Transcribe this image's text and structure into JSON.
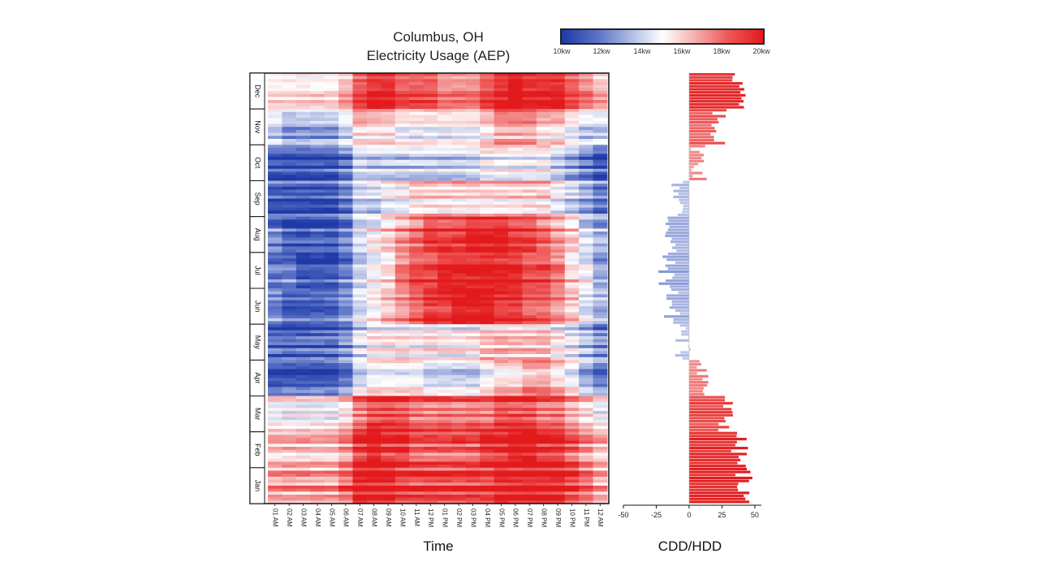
{
  "title_lines": [
    "Columbus, OH",
    "Electricity Usage (AEP)"
  ],
  "colorbar": {
    "ticks": [
      "10kw",
      "12kw",
      "14kw",
      "16kw",
      "18kw",
      "20kw"
    ],
    "colors": [
      "#1f3aa7",
      "#5b73c7",
      "#b7c2e6",
      "#ffffff",
      "#f5b0b0",
      "#ef5a5a",
      "#e31a1c"
    ]
  },
  "chart_data": [
    {
      "type": "heatmap",
      "title": "Columbus, OH Electricity Usage (AEP)",
      "xlabel": "Time",
      "ylabel": "",
      "x_ticks": [
        "01 AM",
        "02 AM",
        "03 AM",
        "04 AM",
        "05 AM",
        "06 AM",
        "07 AM",
        "08 AM",
        "09 AM",
        "10 AM",
        "11 AM",
        "12 PM",
        "01 PM",
        "02 PM",
        "03 PM",
        "04 PM",
        "05 PM",
        "06 PM",
        "07 PM",
        "08 PM",
        "09 PM",
        "10 PM",
        "11 PM",
        "12 AM"
      ],
      "y_months_top_to_bottom": [
        "Dec",
        "Nov",
        "Oct",
        "Sep",
        "Aug",
        "Jul",
        "Jun",
        "May",
        "Apr",
        "Mar",
        "Feb",
        "Jan"
      ],
      "value_range_kw": [
        10,
        20
      ],
      "monthly_typical_kw_by_hour": {
        "Dec": [
          15,
          15,
          15,
          15,
          15,
          16,
          18,
          19,
          19,
          18,
          18,
          18,
          17,
          17,
          17,
          18,
          19,
          20,
          19,
          19,
          19,
          18,
          17,
          16
        ],
        "Nov": [
          14,
          13,
          13,
          13,
          13,
          14,
          16,
          16,
          16,
          15,
          15,
          15,
          15,
          15,
          15,
          16,
          17,
          17,
          17,
          16,
          16,
          15,
          14,
          14
        ],
        "Oct": [
          11,
          11,
          11,
          11,
          11,
          12,
          14,
          14,
          14,
          14,
          14,
          14,
          14,
          14,
          14,
          15,
          15,
          15,
          15,
          15,
          14,
          13,
          12,
          11
        ],
        "Sep": [
          11,
          11,
          11,
          11,
          11,
          12,
          14,
          14,
          15,
          15,
          16,
          16,
          16,
          16,
          16,
          16,
          16,
          16,
          16,
          16,
          15,
          14,
          13,
          12
        ],
        "Aug": [
          12,
          11,
          11,
          11,
          11,
          12,
          14,
          15,
          16,
          17,
          18,
          19,
          19,
          19,
          20,
          20,
          20,
          19,
          19,
          18,
          17,
          16,
          14,
          13
        ],
        "Jul": [
          12,
          12,
          11,
          11,
          11,
          12,
          14,
          15,
          16,
          18,
          19,
          19,
          20,
          20,
          20,
          20,
          20,
          20,
          19,
          19,
          18,
          16,
          15,
          13
        ],
        "Jun": [
          12,
          11,
          11,
          11,
          11,
          12,
          14,
          15,
          16,
          17,
          18,
          19,
          19,
          20,
          20,
          20,
          19,
          19,
          18,
          18,
          17,
          16,
          14,
          13
        ],
        "May": [
          11,
          11,
          11,
          11,
          11,
          12,
          14,
          15,
          15,
          15,
          15,
          15,
          15,
          15,
          15,
          16,
          16,
          16,
          16,
          16,
          15,
          14,
          13,
          12
        ],
        "Apr": [
          11,
          11,
          11,
          11,
          11,
          12,
          14,
          15,
          15,
          15,
          15,
          14,
          14,
          14,
          14,
          15,
          16,
          16,
          17,
          17,
          16,
          15,
          13,
          12
        ],
        "Mar": [
          15,
          15,
          15,
          15,
          15,
          16,
          18,
          19,
          19,
          19,
          18,
          18,
          18,
          18,
          18,
          18,
          19,
          19,
          19,
          18,
          18,
          17,
          16,
          15
        ],
        "Feb": [
          16,
          16,
          16,
          16,
          16,
          17,
          19,
          20,
          19,
          19,
          18,
          18,
          18,
          18,
          18,
          19,
          19,
          20,
          20,
          19,
          19,
          18,
          17,
          16
        ],
        "Jan": [
          17,
          17,
          17,
          17,
          17,
          18,
          20,
          20,
          20,
          19,
          19,
          19,
          19,
          19,
          19,
          19,
          20,
          20,
          20,
          20,
          20,
          19,
          18,
          17
        ]
      }
    },
    {
      "type": "bar",
      "orientation": "horizontal",
      "xlabel": "CDD/HDD",
      "ylabel": "",
      "x_ticks": [
        -50,
        -25,
        0,
        25,
        50
      ],
      "xlim": [
        -50,
        55
      ],
      "monthly_typical_degree_days": {
        "Dec": 38,
        "Nov": 22,
        "Oct": 8,
        "Sep": -8,
        "Aug": -14,
        "Jul": -17,
        "Jun": -13,
        "May": -5,
        "Apr": 12,
        "Mar": 28,
        "Feb": 38,
        "Jan": 42
      }
    }
  ]
}
